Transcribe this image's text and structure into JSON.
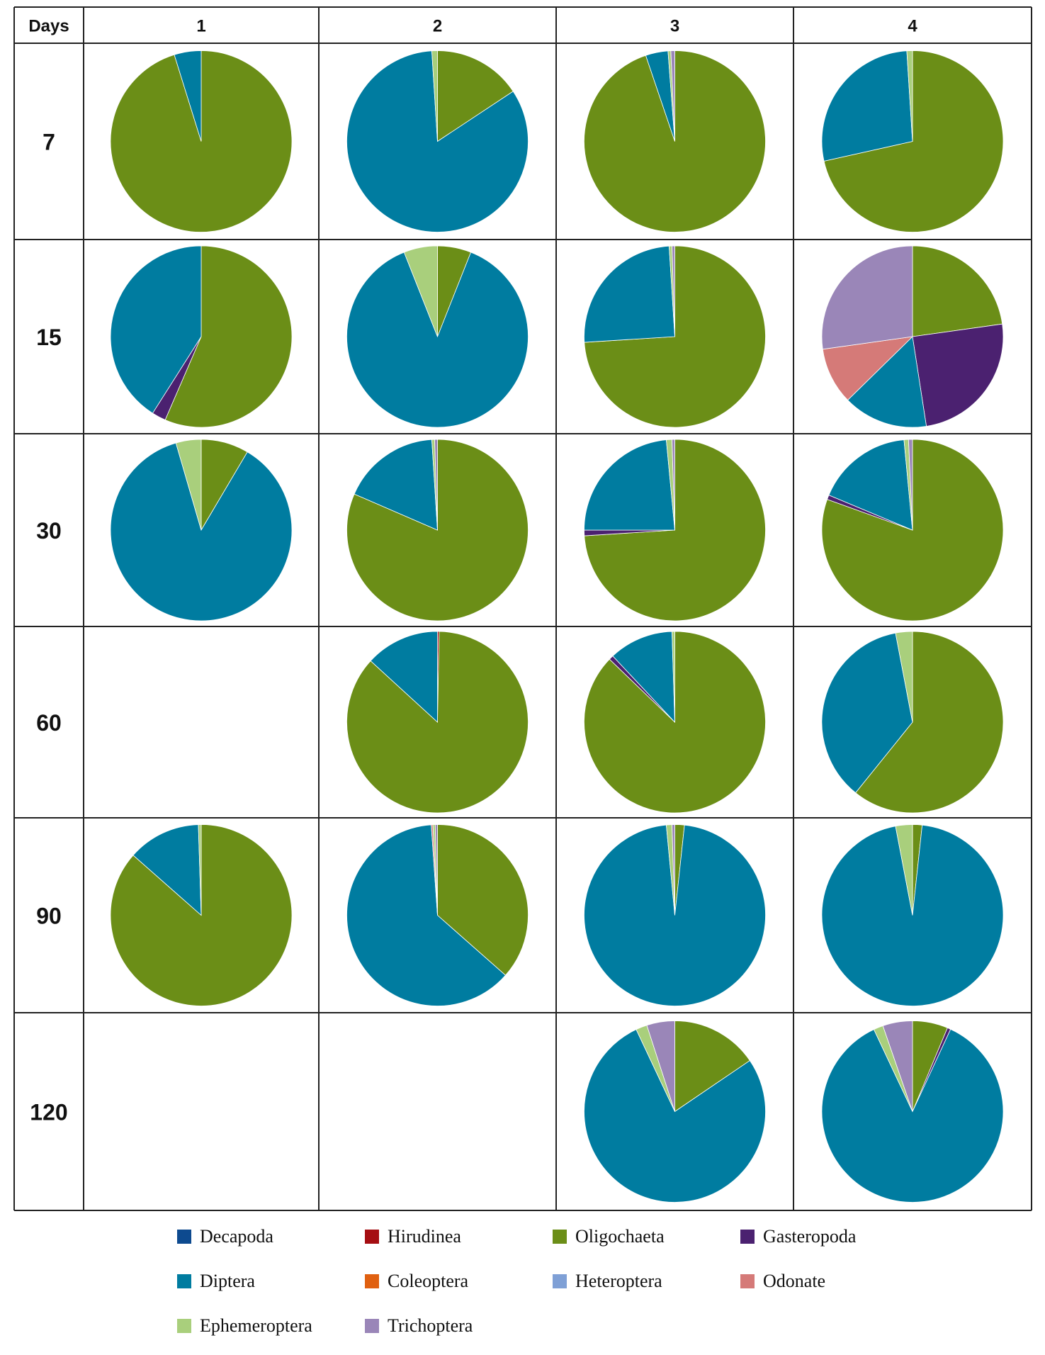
{
  "chart_data": {
    "type": "pie",
    "corner_label": "Days",
    "columns": [
      "1",
      "2",
      "3",
      "4"
    ],
    "rows": [
      "7",
      "15",
      "30",
      "60",
      "90",
      "120"
    ],
    "categories": [
      "Decapoda",
      "Hirudinea",
      "Oligochaeta",
      "Gasteropoda",
      "Diptera",
      "Coleoptera",
      "Heteroptera",
      "Odonate",
      "Ephemeroptera",
      "Trichoptera"
    ],
    "colors": {
      "Decapoda": "#0d4a8f",
      "Hirudinea": "#a50e12",
      "Oligochaeta": "#6b8e17",
      "Gasteropoda": "#4b2170",
      "Diptera": "#007ca0",
      "Coleoptera": "#e06010",
      "Heteroptera": "#7fa0d6",
      "Odonate": "#d57a78",
      "Ephemeroptera": "#a9cf7c",
      "Trichoptera": "#9a86b8"
    },
    "legend_position": "bottom",
    "pies": [
      {
        "day": "7",
        "site": "1",
        "slices": [
          {
            "name": "Oligochaeta",
            "value": 95.2
          },
          {
            "name": "Diptera",
            "value": 4.8
          }
        ]
      },
      {
        "day": "7",
        "site": "2",
        "slices": [
          {
            "name": "Oligochaeta",
            "value": 15.7
          },
          {
            "name": "Diptera",
            "value": 83.3
          },
          {
            "name": "Ephemeroptera",
            "value": 1.0
          }
        ]
      },
      {
        "day": "7",
        "site": "3",
        "slices": [
          {
            "name": "Oligochaeta",
            "value": 94.8
          },
          {
            "name": "Diptera",
            "value": 4.0
          },
          {
            "name": "Ephemeroptera",
            "value": 0.5
          },
          {
            "name": "Trichoptera",
            "value": 0.7
          }
        ]
      },
      {
        "day": "7",
        "site": "4",
        "slices": [
          {
            "name": "Oligochaeta",
            "value": 71.5
          },
          {
            "name": "Diptera",
            "value": 27.5
          },
          {
            "name": "Ephemeroptera",
            "value": 1.0
          }
        ]
      },
      {
        "day": "15",
        "site": "1",
        "slices": [
          {
            "name": "Oligochaeta",
            "value": 56.5
          },
          {
            "name": "Gasteropoda",
            "value": 2.5
          },
          {
            "name": "Diptera",
            "value": 41.0
          }
        ]
      },
      {
        "day": "15",
        "site": "2",
        "slices": [
          {
            "name": "Oligochaeta",
            "value": 6.0
          },
          {
            "name": "Diptera",
            "value": 88.0
          },
          {
            "name": "Ephemeroptera",
            "value": 6.0
          }
        ]
      },
      {
        "day": "15",
        "site": "3",
        "slices": [
          {
            "name": "Oligochaeta",
            "value": 74.0
          },
          {
            "name": "Diptera",
            "value": 25.0
          },
          {
            "name": "Ephemeroptera",
            "value": 0.5
          },
          {
            "name": "Trichoptera",
            "value": 0.5
          }
        ]
      },
      {
        "day": "15",
        "site": "4",
        "slices": [
          {
            "name": "Oligochaeta",
            "value": 20.5
          },
          {
            "name": "Gasteropoda",
            "value": 22.3
          },
          {
            "name": "Diptera",
            "value": 13.6
          },
          {
            "name": "Odonate",
            "value": 9.1
          },
          {
            "name": "Trichoptera",
            "value": 24.5
          },
          {
            "name": "Heteroptera",
            "value": 0.0
          }
        ]
      },
      {
        "day": "30",
        "site": "1",
        "slices": [
          {
            "name": "Oligochaeta",
            "value": 8.5
          },
          {
            "name": "Diptera",
            "value": 87.0
          },
          {
            "name": "Ephemeroptera",
            "value": 4.5
          }
        ]
      },
      {
        "day": "30",
        "site": "2",
        "slices": [
          {
            "name": "Oligochaeta",
            "value": 81.5
          },
          {
            "name": "Diptera",
            "value": 17.5
          },
          {
            "name": "Ephemeroptera",
            "value": 0.5
          },
          {
            "name": "Trichoptera",
            "value": 0.5
          }
        ]
      },
      {
        "day": "30",
        "site": "3",
        "slices": [
          {
            "name": "Oligochaeta",
            "value": 74.0
          },
          {
            "name": "Gasteropoda",
            "value": 1.0
          },
          {
            "name": "Diptera",
            "value": 23.5
          },
          {
            "name": "Ephemeroptera",
            "value": 1.0
          },
          {
            "name": "Trichoptera",
            "value": 0.5
          }
        ]
      },
      {
        "day": "30",
        "site": "4",
        "slices": [
          {
            "name": "Oligochaeta",
            "value": 80.5
          },
          {
            "name": "Gasteropoda",
            "value": 0.8
          },
          {
            "name": "Diptera",
            "value": 17.2
          },
          {
            "name": "Ephemeroptera",
            "value": 0.8
          },
          {
            "name": "Trichoptera",
            "value": 0.7
          }
        ]
      },
      {
        "day": "60",
        "site": "2",
        "slices": [
          {
            "name": "Oligochaeta",
            "value": 86.5
          },
          {
            "name": "Hirudinea",
            "value": 0.3
          },
          {
            "name": "Diptera",
            "value": 13.2
          }
        ]
      },
      {
        "day": "60",
        "site": "3",
        "slices": [
          {
            "name": "Oligochaeta",
            "value": 87.2
          },
          {
            "name": "Gasteropoda",
            "value": 0.8
          },
          {
            "name": "Diptera",
            "value": 11.5
          },
          {
            "name": "Ephemeroptera",
            "value": 0.5
          }
        ]
      },
      {
        "day": "60",
        "site": "4",
        "slices": [
          {
            "name": "Oligochaeta",
            "value": 60.8
          },
          {
            "name": "Diptera",
            "value": 36.2
          },
          {
            "name": "Ephemeroptera",
            "value": 3.0
          }
        ]
      },
      {
        "day": "90",
        "site": "1",
        "slices": [
          {
            "name": "Oligochaeta",
            "value": 86.5
          },
          {
            "name": "Diptera",
            "value": 13.0
          },
          {
            "name": "Ephemeroptera",
            "value": 0.5
          }
        ]
      },
      {
        "day": "90",
        "site": "2",
        "slices": [
          {
            "name": "Oligochaeta",
            "value": 36.5
          },
          {
            "name": "Diptera",
            "value": 62.4
          },
          {
            "name": "Odonate",
            "value": 0.3
          },
          {
            "name": "Ephemeroptera",
            "value": 0.4
          },
          {
            "name": "Trichoptera",
            "value": 0.4
          }
        ]
      },
      {
        "day": "90",
        "site": "3",
        "slices": [
          {
            "name": "Oligochaeta",
            "value": 1.7
          },
          {
            "name": "Diptera",
            "value": 96.8
          },
          {
            "name": "Ephemeroptera",
            "value": 1.0
          },
          {
            "name": "Trichoptera",
            "value": 0.5
          }
        ]
      },
      {
        "day": "90",
        "site": "4",
        "slices": [
          {
            "name": "Oligochaeta",
            "value": 1.7
          },
          {
            "name": "Diptera",
            "value": 95.3
          },
          {
            "name": "Ephemeroptera",
            "value": 3.0
          }
        ]
      },
      {
        "day": "120",
        "site": "3",
        "slices": [
          {
            "name": "Oligochaeta",
            "value": 15.5
          },
          {
            "name": "Diptera",
            "value": 77.5
          },
          {
            "name": "Ephemeroptera",
            "value": 2.0
          },
          {
            "name": "Trichoptera",
            "value": 5.0
          }
        ]
      },
      {
        "day": "120",
        "site": "4",
        "slices": [
          {
            "name": "Oligochaeta",
            "value": 6.3
          },
          {
            "name": "Gasteropoda",
            "value": 0.6
          },
          {
            "name": "Diptera",
            "value": 86.1
          },
          {
            "name": "Ephemeroptera",
            "value": 1.7
          },
          {
            "name": "Trichoptera",
            "value": 5.3
          }
        ]
      }
    ]
  }
}
